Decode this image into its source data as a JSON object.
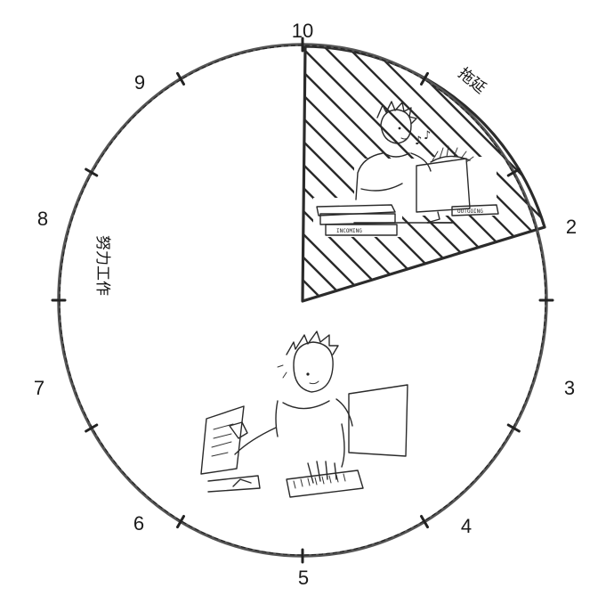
{
  "clock": {
    "hour_labels": [
      "10",
      "2",
      "3",
      "4",
      "5",
      "6",
      "7",
      "8",
      "9"
    ],
    "slices": [
      {
        "label": "拖延",
        "from_hour": 10,
        "to_hour": 2,
        "pattern": "hatched"
      },
      {
        "label": "努力工作",
        "from_hour": 2,
        "to_hour": 10,
        "pattern": "plain"
      }
    ],
    "illustration_text": {
      "incoming_box": "INCOMING",
      "outgoing_box": "OUTGOING"
    }
  }
}
